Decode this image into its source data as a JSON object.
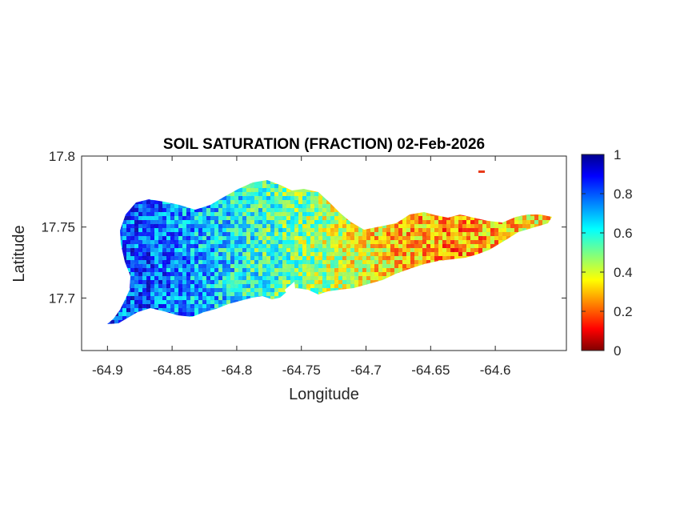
{
  "chart_data": {
    "type": "heatmap",
    "title": "SOIL SATURATION (FRACTION) 02-Feb-2026",
    "xlabel": "Longitude",
    "ylabel": "Latitude",
    "xlim": [
      -64.92,
      -64.545
    ],
    "ylim": [
      17.663,
      17.8
    ],
    "xticks": [
      -64.9,
      -64.85,
      -64.8,
      -64.75,
      -64.7,
      -64.65,
      -64.6
    ],
    "xtick_labels": [
      "-64.9",
      "-64.85",
      "-64.8",
      "-64.75",
      "-64.7",
      "-64.65",
      "-64.6"
    ],
    "yticks": [
      17.7,
      17.75,
      17.8
    ],
    "ytick_labels": [
      "17.7",
      "17.75",
      "17.8"
    ],
    "colorbar": {
      "colormap": "jet",
      "range": [
        0,
        1
      ],
      "ticks": [
        0,
        0.2,
        0.4,
        0.6,
        0.8,
        1
      ],
      "tick_labels": [
        "0",
        "0.2",
        "0.4",
        "0.6",
        "0.8",
        "1"
      ],
      "colors": [
        "#800000",
        "#ff0000",
        "#ffff00",
        "#00ffff",
        "#0000ff",
        "#00008f"
      ]
    },
    "grid": false,
    "regions": [
      {
        "lon_range": [
          -64.9,
          -64.84
        ],
        "approx_value": 0.8
      },
      {
        "lon_range": [
          -64.84,
          -64.78
        ],
        "approx_value": 0.65
      },
      {
        "lon_range": [
          -64.78,
          -64.72
        ],
        "approx_value": 0.5
      },
      {
        "lon_range": [
          -64.72,
          -64.66
        ],
        "approx_value": 0.35
      },
      {
        "lon_range": [
          -64.66,
          -64.6
        ],
        "approx_value": 0.25
      },
      {
        "lon_range": [
          -64.6,
          -64.57
        ],
        "approx_value": 0.35
      }
    ]
  }
}
